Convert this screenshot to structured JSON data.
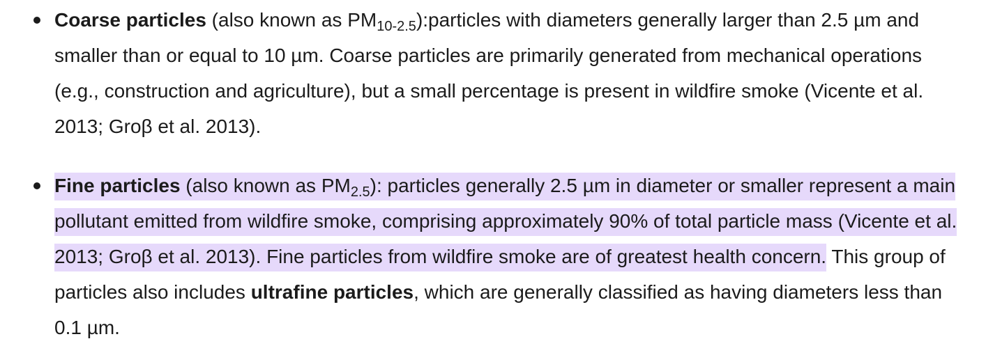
{
  "items": [
    {
      "term": "Coarse particles",
      "intro": " (also known as PM",
      "sub": "10-2.5",
      "after_sub": "):particles with diameters generally larger than 2.5 µm and smaller than or equal to 10 µm. Coarse particles are primarily generated from mechanical operations (e.g., construction and agriculture), but a small percentage is present in wildfire smoke (Vicente et al. 2013; Groβ et al. 2013)."
    },
    {
      "term": "Fine particles",
      "intro": " (also known as PM",
      "sub": "2.5",
      "after_sub": "): particles generally 2.5 µm in diameter or smaller represent a main pollutant emitted from wildfire smoke, comprising approximately 90% of total particle mass (Vicente et al. 2013; Groβ et al. 2013). Fine particles from wildfire smoke are of greatest health concern.",
      "tail_before_bold": " This group of particles also includes ",
      "bold_term": "ultrafine particles",
      "tail_after_bold": ", which are generally classified as having diameters less than 0.1 µm."
    }
  ],
  "colors": {
    "text": "#1b1b1b",
    "highlight": "#e6d9fb"
  }
}
